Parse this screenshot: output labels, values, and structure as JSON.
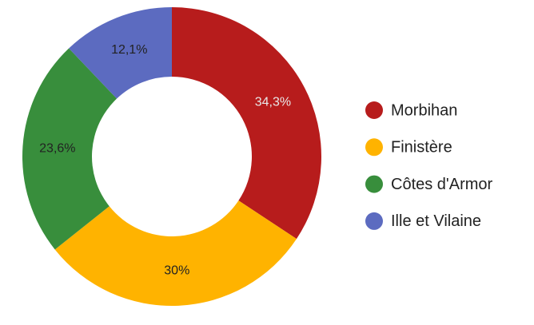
{
  "chart_data": {
    "type": "donut",
    "categories": [
      "Morbihan",
      "Finistère",
      "Côtes d'Armor",
      "Ille et Vilaine"
    ],
    "values": [
      34.3,
      30,
      23.6,
      12.1
    ],
    "value_labels": [
      "34,3%",
      "30%",
      "23,6%",
      "12,1%"
    ],
    "colors": [
      "#b71c1c",
      "#ffb300",
      "#388e3c",
      "#5c6bc0"
    ],
    "legend": "right"
  }
}
